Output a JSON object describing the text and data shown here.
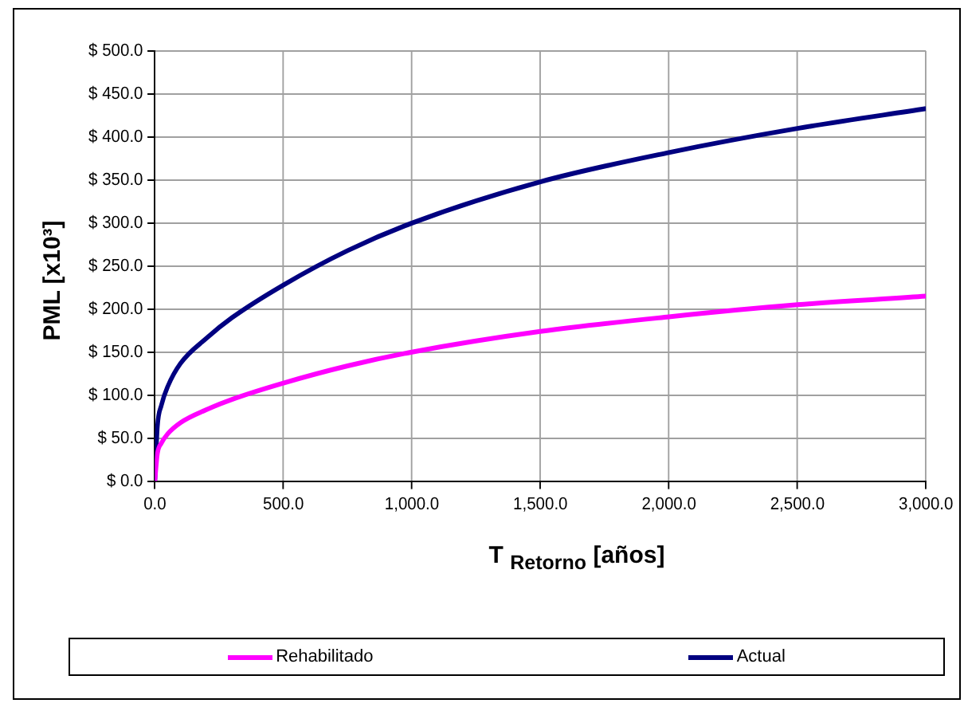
{
  "chart_data": {
    "type": "line",
    "xlabel": "T $_{Retorno}$ [años]",
    "ylabel": "PML [x10³]",
    "x": [
      0,
      10,
      25,
      50,
      100,
      200,
      300,
      500,
      750,
      1000,
      1500,
      2000,
      2500,
      3000
    ],
    "series": [
      {
        "name": "Rehabilitado",
        "color": "#ff00ff",
        "values": [
          0,
          32,
          44,
          55,
          68,
          83,
          95,
          114,
          134,
          150,
          174,
          191,
          205,
          215
        ]
      },
      {
        "name": "Actual",
        "color": "#000080",
        "values": [
          0,
          64,
          88,
          110,
          137,
          166,
          190,
          228,
          268,
          300,
          348,
          382,
          410,
          433
        ]
      }
    ],
    "xlim": [
      0,
      3000
    ],
    "xticks": [
      {
        "value": 0,
        "label": "0.0"
      },
      {
        "value": 500,
        "label": "500.0"
      },
      {
        "value": 1000,
        "label": "1,000.0"
      },
      {
        "value": 1500,
        "label": "1,500.0"
      },
      {
        "value": 2000,
        "label": "2,000.0"
      },
      {
        "value": 2500,
        "label": "2,500.0"
      },
      {
        "value": 3000,
        "label": "3,000.0"
      }
    ],
    "ylim": [
      0,
      500
    ],
    "yticks": [
      {
        "value": 0,
        "label": "$ 0.0"
      },
      {
        "value": 50,
        "label": "$ 50.0"
      },
      {
        "value": 100,
        "label": "$ 100.0"
      },
      {
        "value": 150,
        "label": "$ 150.0"
      },
      {
        "value": 200,
        "label": "$ 200.0"
      },
      {
        "value": 250,
        "label": "$ 250.0"
      },
      {
        "value": 300,
        "label": "$ 300.0"
      },
      {
        "value": 350,
        "label": "$ 350.0"
      },
      {
        "value": 400,
        "label": "$ 400.0"
      },
      {
        "value": 450,
        "label": "$ 450.0"
      },
      {
        "value": 500,
        "label": "$ 500.0"
      }
    ],
    "grid": true,
    "legend": "bottom",
    "marker": "none",
    "line_style": "solid"
  }
}
